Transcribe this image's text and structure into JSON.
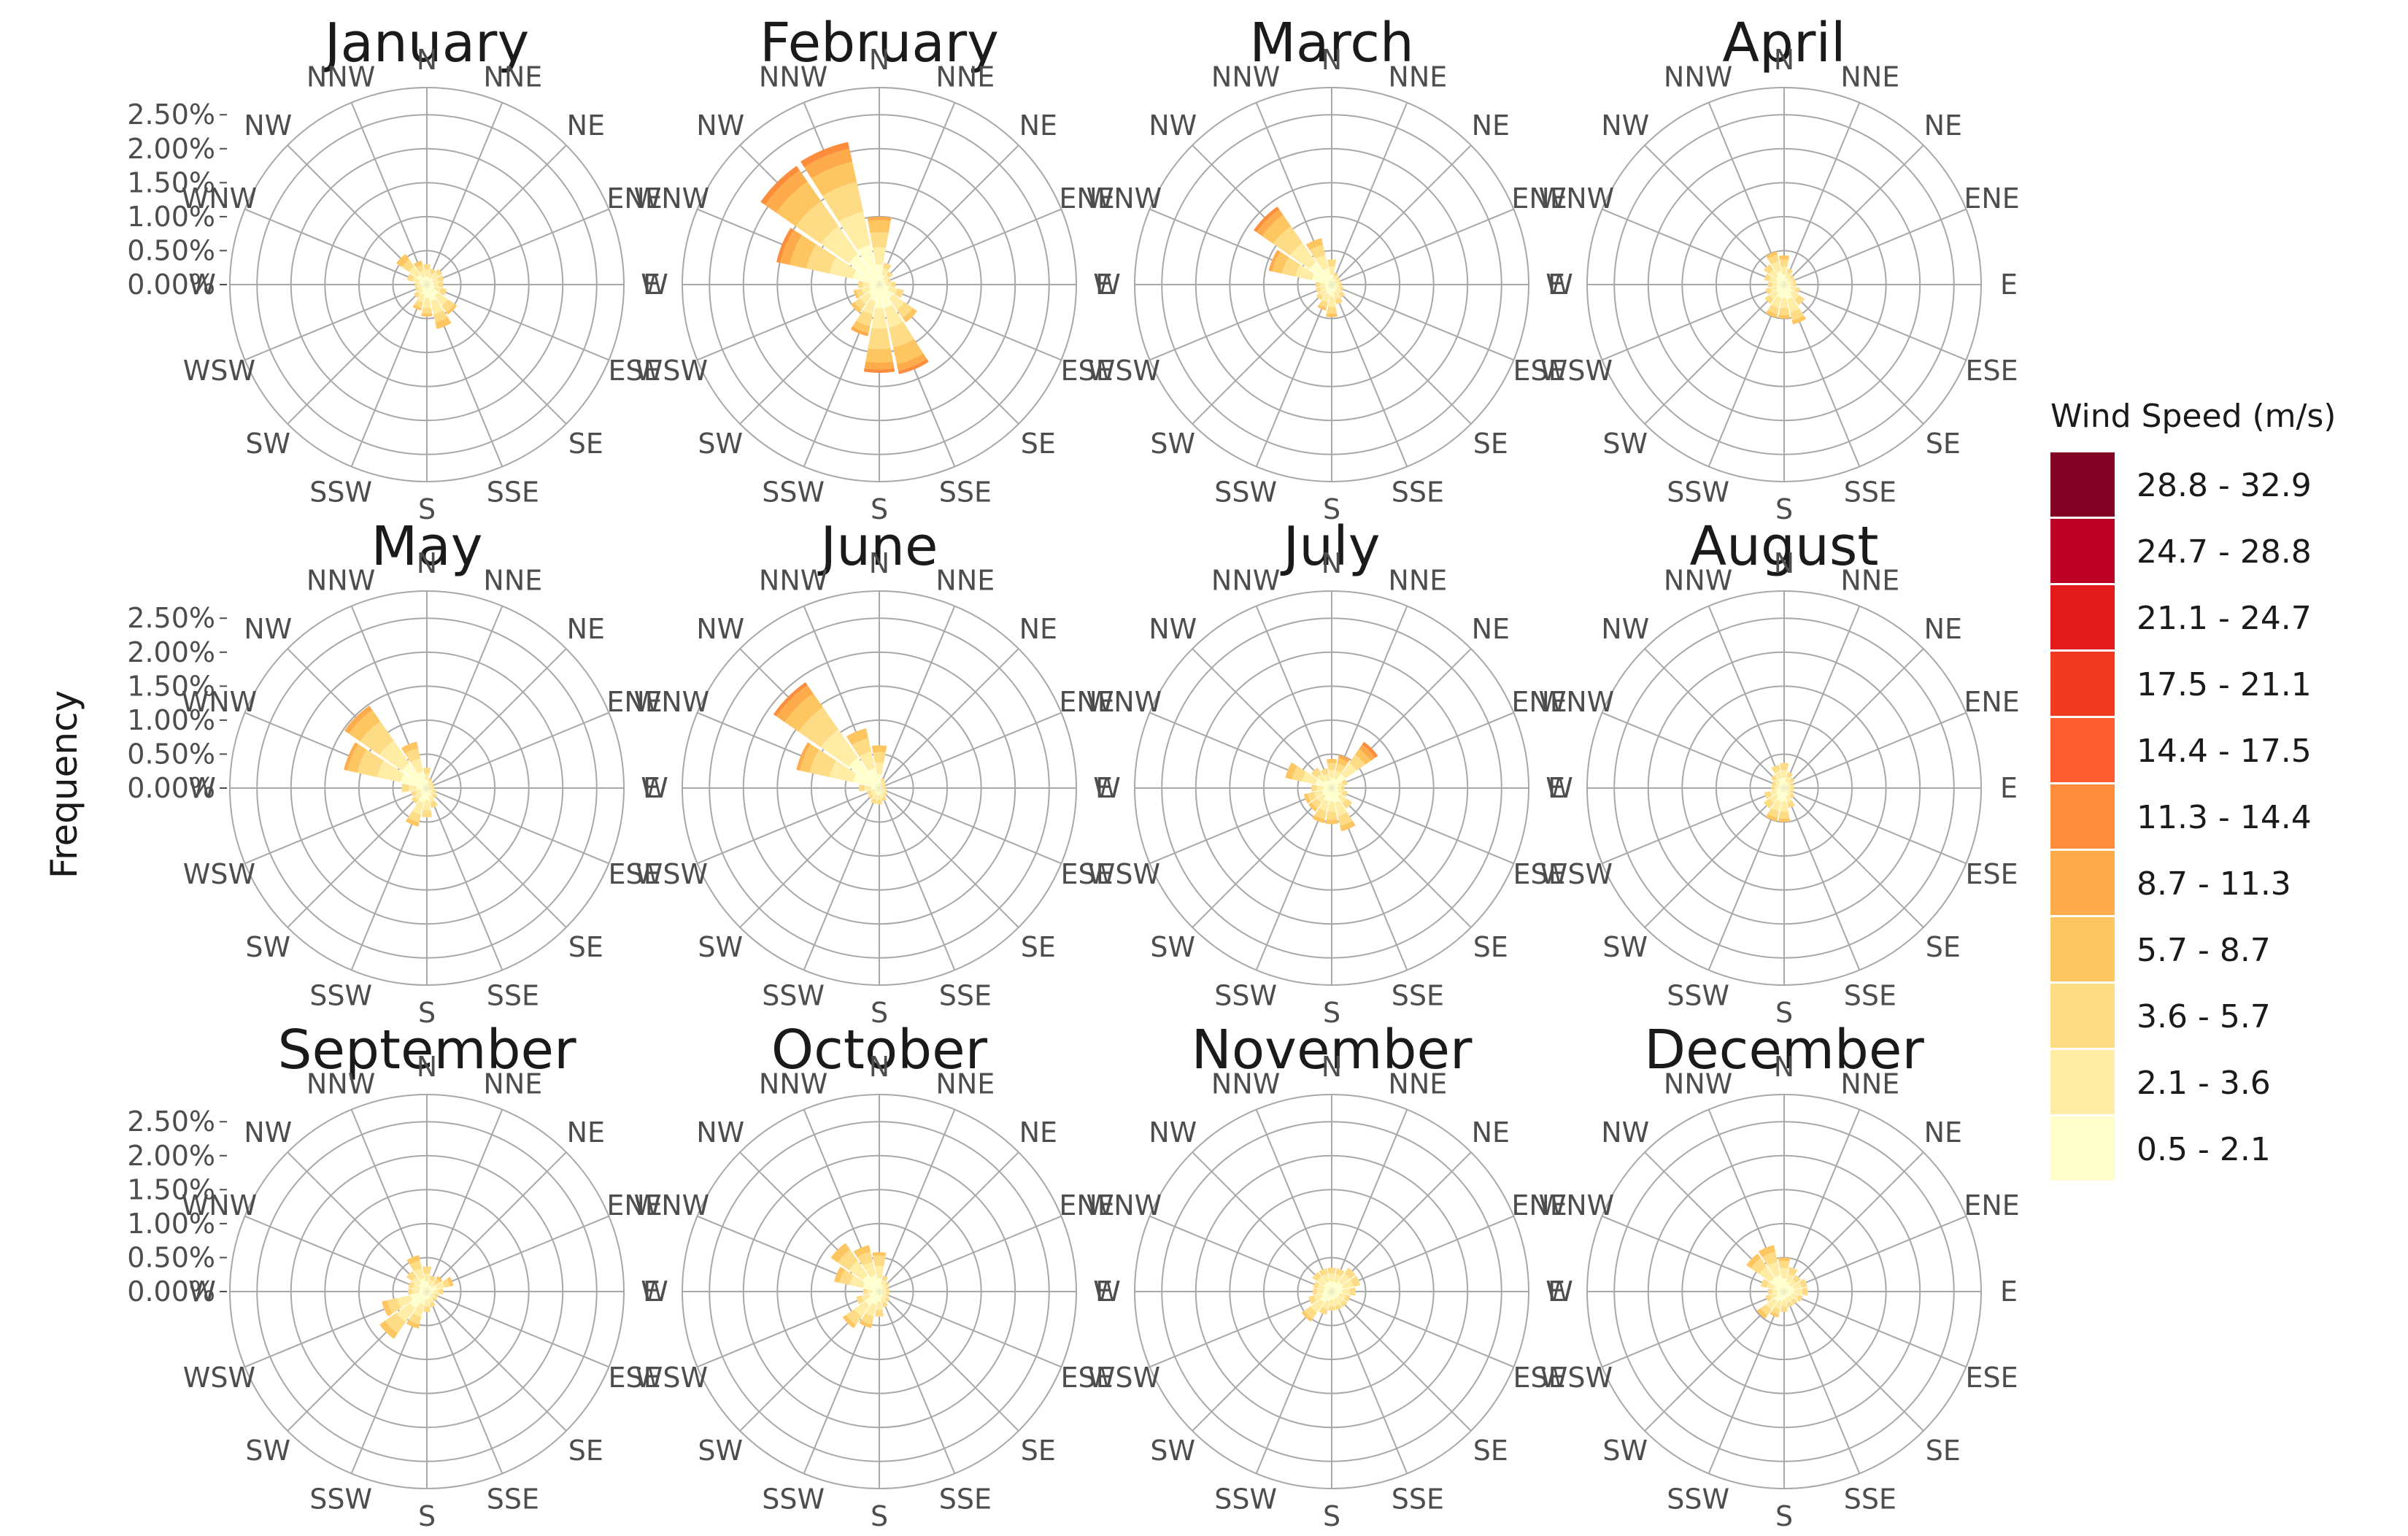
{
  "chart_data": {
    "type": "wind-rose",
    "ylabel": "Frequency",
    "y_ticks": [
      "0.00%",
      "0.50%",
      "1.00%",
      "1.50%",
      "2.00%",
      "2.50%"
    ],
    "y_max_percent": 2.9,
    "directions": [
      "N",
      "NNE",
      "NE",
      "ENE",
      "E",
      "ESE",
      "SE",
      "SSE",
      "S",
      "SSW",
      "SW",
      "WSW",
      "W",
      "WNW",
      "NW",
      "NNW"
    ],
    "legend": {
      "title": "Wind Speed (m/s)",
      "bins": [
        {
          "label": "28.8 - 32.9",
          "color": "#800026"
        },
        {
          "label": "24.7 - 28.8",
          "color": "#BD0026"
        },
        {
          "label": "21.1 - 24.7",
          "color": "#E31A1C"
        },
        {
          "label": "17.5 - 21.1",
          "color": "#F03B20"
        },
        {
          "label": "14.4 - 17.5",
          "color": "#FC5C2E"
        },
        {
          "label": "11.3 - 14.4",
          "color": "#FD8D3C"
        },
        {
          "label": "8.7 - 11.3",
          "color": "#FEAB4B"
        },
        {
          "label": "5.7 - 8.7",
          "color": "#FEC661"
        },
        {
          "label": "3.6 - 5.7",
          "color": "#FEDB85"
        },
        {
          "label": "2.1 - 3.6",
          "color": "#FFEDA5"
        },
        {
          "label": "0.5 - 2.1",
          "color": "#FFFFCC"
        }
      ]
    },
    "speed_colors_low_to_high": [
      "#FFFFCC",
      "#FFEDA5",
      "#FEDB85",
      "#FEC661",
      "#FEAB4B",
      "#FD8D3C",
      "#FC5C2E",
      "#F03B20",
      "#E31A1C",
      "#BD0026",
      "#800026"
    ],
    "note_stacks": "each direction value = stacked frequencies (%) by speed bin, low to high",
    "facets": [
      {
        "title": "January",
        "stacks": [
          [
            0.12,
            0.1,
            0.08
          ],
          [
            0.1,
            0.08,
            0.06
          ],
          [
            0.12,
            0.1,
            0.06
          ],
          [
            0.1,
            0.08,
            0.08
          ],
          [
            0.1,
            0.08,
            0.06
          ],
          [
            0.12,
            0.1,
            0.08
          ],
          [
            0.2,
            0.18,
            0.12,
            0.04
          ],
          [
            0.25,
            0.2,
            0.12,
            0.1
          ],
          [
            0.2,
            0.15,
            0.08,
            0.04
          ],
          [
            0.15,
            0.12,
            0.08,
            0.04
          ],
          [
            0.1,
            0.08,
            0.06
          ],
          [
            0.08,
            0.06,
            0.04
          ],
          [
            0.08,
            0.06,
            0.04
          ],
          [
            0.12,
            0.1,
            0.08
          ],
          [
            0.18,
            0.15,
            0.12,
            0.1
          ],
          [
            0.12,
            0.1,
            0.08,
            0.06
          ]
        ]
      },
      {
        "title": "February",
        "stacks": [
          [
            0.3,
            0.25,
            0.22,
            0.18,
            0.05
          ],
          [
            0.15,
            0.1,
            0.08
          ],
          [
            0.1,
            0.08,
            0.06
          ],
          [
            0.08,
            0.06,
            0.04
          ],
          [
            0.1,
            0.08,
            0.06
          ],
          [
            0.15,
            0.12,
            0.1
          ],
          [
            0.25,
            0.2,
            0.15,
            0.08
          ],
          [
            0.35,
            0.3,
            0.3,
            0.25,
            0.1,
            0.05
          ],
          [
            0.35,
            0.3,
            0.3,
            0.2,
            0.1,
            0.05
          ],
          [
            0.25,
            0.2,
            0.18,
            0.1,
            0.05
          ],
          [
            0.2,
            0.15,
            0.1,
            0.06
          ],
          [
            0.15,
            0.12,
            0.08,
            0.04
          ],
          [
            0.15,
            0.1,
            0.06
          ],
          [
            0.4,
            0.35,
            0.35,
            0.25,
            0.15,
            0.05
          ],
          [
            0.55,
            0.5,
            0.45,
            0.35,
            0.2,
            0.08
          ],
          [
            0.6,
            0.5,
            0.45,
            0.3,
            0.2,
            0.1
          ]
        ]
      },
      {
        "title": "March",
        "stacks": [
          [
            0.15,
            0.12,
            0.1
          ],
          [
            0.08,
            0.06,
            0.04
          ],
          [
            0.06,
            0.05,
            0.04
          ],
          [
            0.06,
            0.05,
            0.03
          ],
          [
            0.06,
            0.05,
            0.04
          ],
          [
            0.08,
            0.06,
            0.04
          ],
          [
            0.1,
            0.08,
            0.06
          ],
          [
            0.12,
            0.1,
            0.08
          ],
          [
            0.18,
            0.15,
            0.1,
            0.05
          ],
          [
            0.15,
            0.12,
            0.08,
            0.04
          ],
          [
            0.12,
            0.1,
            0.06
          ],
          [
            0.1,
            0.08,
            0.06
          ],
          [
            0.1,
            0.08,
            0.06
          ],
          [
            0.3,
            0.25,
            0.2,
            0.15,
            0.05
          ],
          [
            0.4,
            0.35,
            0.3,
            0.2,
            0.1,
            0.05
          ],
          [
            0.25,
            0.2,
            0.15,
            0.1
          ]
        ]
      },
      {
        "title": "April",
        "stacks": [
          [
            0.15,
            0.12,
            0.1,
            0.06
          ],
          [
            0.1,
            0.08,
            0.06
          ],
          [
            0.08,
            0.06,
            0.04
          ],
          [
            0.08,
            0.06,
            0.04
          ],
          [
            0.08,
            0.06,
            0.04
          ],
          [
            0.1,
            0.08,
            0.06
          ],
          [
            0.15,
            0.12,
            0.1
          ],
          [
            0.22,
            0.2,
            0.12,
            0.06
          ],
          [
            0.2,
            0.15,
            0.1,
            0.05
          ],
          [
            0.2,
            0.15,
            0.1,
            0.05
          ],
          [
            0.15,
            0.12,
            0.08
          ],
          [
            0.12,
            0.1,
            0.06
          ],
          [
            0.1,
            0.08,
            0.06
          ],
          [
            0.12,
            0.1,
            0.08
          ],
          [
            0.15,
            0.12,
            0.1
          ],
          [
            0.2,
            0.15,
            0.1,
            0.05
          ]
        ]
      },
      {
        "title": "May",
        "stacks": [
          [
            0.12,
            0.1,
            0.08
          ],
          [
            0.06,
            0.05,
            0.04
          ],
          [
            0.05,
            0.04,
            0.03
          ],
          [
            0.04,
            0.04,
            0.03
          ],
          [
            0.04,
            0.04,
            0.03
          ],
          [
            0.06,
            0.05,
            0.04
          ],
          [
            0.08,
            0.06,
            0.05
          ],
          [
            0.12,
            0.1,
            0.08
          ],
          [
            0.18,
            0.15,
            0.1
          ],
          [
            0.22,
            0.18,
            0.12,
            0.06
          ],
          [
            0.12,
            0.1,
            0.06
          ],
          [
            0.1,
            0.08,
            0.06
          ],
          [
            0.15,
            0.12,
            0.1
          ],
          [
            0.4,
            0.35,
            0.3,
            0.15,
            0.05
          ],
          [
            0.45,
            0.4,
            0.35,
            0.2,
            0.08
          ],
          [
            0.25,
            0.2,
            0.15,
            0.1
          ]
        ]
      },
      {
        "title": "June",
        "stacks": [
          [
            0.2,
            0.18,
            0.15,
            0.1
          ],
          [
            0.06,
            0.05,
            0.04
          ],
          [
            0.05,
            0.04,
            0.03
          ],
          [
            0.04,
            0.03,
            0.03
          ],
          [
            0.04,
            0.03,
            0.03
          ],
          [
            0.05,
            0.04,
            0.03
          ],
          [
            0.06,
            0.05,
            0.04
          ],
          [
            0.08,
            0.07,
            0.05
          ],
          [
            0.1,
            0.08,
            0.06
          ],
          [
            0.1,
            0.08,
            0.06
          ],
          [
            0.08,
            0.07,
            0.05
          ],
          [
            0.08,
            0.06,
            0.05
          ],
          [
            0.12,
            0.1,
            0.08
          ],
          [
            0.4,
            0.35,
            0.3,
            0.15,
            0.05
          ],
          [
            0.55,
            0.5,
            0.4,
            0.25,
            0.15,
            0.05
          ],
          [
            0.3,
            0.25,
            0.2,
            0.15
          ]
        ]
      },
      {
        "title": "July",
        "stacks": [
          [
            0.15,
            0.12,
            0.1,
            0.06
          ],
          [
            0.15,
            0.12,
            0.1,
            0.08,
            0.05
          ],
          [
            0.25,
            0.2,
            0.15,
            0.1,
            0.08,
            0.05
          ],
          [
            0.1,
            0.08,
            0.06
          ],
          [
            0.08,
            0.06,
            0.05
          ],
          [
            0.1,
            0.08,
            0.06
          ],
          [
            0.15,
            0.12,
            0.1
          ],
          [
            0.22,
            0.2,
            0.15,
            0.08
          ],
          [
            0.2,
            0.15,
            0.12,
            0.06
          ],
          [
            0.2,
            0.15,
            0.12,
            0.06
          ],
          [
            0.15,
            0.12,
            0.1,
            0.05
          ],
          [
            0.15,
            0.12,
            0.1,
            0.05
          ],
          [
            0.12,
            0.1,
            0.08
          ],
          [
            0.25,
            0.2,
            0.15,
            0.1
          ],
          [
            0.15,
            0.12,
            0.1
          ],
          [
            0.12,
            0.1,
            0.08
          ]
        ]
      },
      {
        "title": "August",
        "stacks": [
          [
            0.15,
            0.12,
            0.1
          ],
          [
            0.1,
            0.08,
            0.06
          ],
          [
            0.08,
            0.06,
            0.05
          ],
          [
            0.06,
            0.05,
            0.04
          ],
          [
            0.06,
            0.05,
            0.04
          ],
          [
            0.06,
            0.05,
            0.04
          ],
          [
            0.08,
            0.06,
            0.05
          ],
          [
            0.12,
            0.1,
            0.08
          ],
          [
            0.2,
            0.15,
            0.1,
            0.05
          ],
          [
            0.2,
            0.15,
            0.1,
            0.05
          ],
          [
            0.15,
            0.12,
            0.1
          ],
          [
            0.12,
            0.1,
            0.08
          ],
          [
            0.08,
            0.06,
            0.05
          ],
          [
            0.08,
            0.06,
            0.05
          ],
          [
            0.1,
            0.08,
            0.06
          ],
          [
            0.15,
            0.12,
            0.08
          ]
        ]
      },
      {
        "title": "September",
        "stacks": [
          [
            0.15,
            0.12,
            0.1
          ],
          [
            0.1,
            0.08,
            0.06
          ],
          [
            0.1,
            0.08,
            0.06,
            0.04
          ],
          [
            0.15,
            0.12,
            0.08,
            0.05
          ],
          [
            0.1,
            0.08,
            0.06
          ],
          [
            0.08,
            0.06,
            0.04
          ],
          [
            0.08,
            0.06,
            0.04
          ],
          [
            0.1,
            0.08,
            0.06
          ],
          [
            0.12,
            0.1,
            0.08
          ],
          [
            0.2,
            0.18,
            0.12,
            0.06
          ],
          [
            0.3,
            0.25,
            0.2,
            0.1
          ],
          [
            0.25,
            0.2,
            0.15,
            0.08
          ],
          [
            0.12,
            0.1,
            0.06
          ],
          [
            0.12,
            0.1,
            0.06
          ],
          [
            0.15,
            0.12,
            0.1
          ],
          [
            0.2,
            0.15,
            0.12,
            0.08
          ]
        ]
      },
      {
        "title": "October",
        "stacks": [
          [
            0.2,
            0.18,
            0.15,
            0.05
          ],
          [
            0.1,
            0.08,
            0.06
          ],
          [
            0.08,
            0.06,
            0.04
          ],
          [
            0.06,
            0.05,
            0.04
          ],
          [
            0.06,
            0.05,
            0.04
          ],
          [
            0.06,
            0.05,
            0.04
          ],
          [
            0.08,
            0.06,
            0.05
          ],
          [
            0.1,
            0.08,
            0.06
          ],
          [
            0.15,
            0.12,
            0.1
          ],
          [
            0.2,
            0.18,
            0.12,
            0.05
          ],
          [
            0.25,
            0.2,
            0.15,
            0.06
          ],
          [
            0.15,
            0.12,
            0.08
          ],
          [
            0.1,
            0.08,
            0.06
          ],
          [
            0.25,
            0.2,
            0.15,
            0.08
          ],
          [
            0.3,
            0.25,
            0.2,
            0.12
          ],
          [
            0.25,
            0.2,
            0.15,
            0.1
          ]
        ]
      },
      {
        "title": "November",
        "stacks": [
          [
            0.15,
            0.12,
            0.08
          ],
          [
            0.15,
            0.12,
            0.08
          ],
          [
            0.18,
            0.15,
            0.1
          ],
          [
            0.18,
            0.15,
            0.1
          ],
          [
            0.15,
            0.12,
            0.08
          ],
          [
            0.12,
            0.1,
            0.06
          ],
          [
            0.12,
            0.1,
            0.06
          ],
          [
            0.12,
            0.1,
            0.06
          ],
          [
            0.12,
            0.1,
            0.06
          ],
          [
            0.15,
            0.12,
            0.08
          ],
          [
            0.2,
            0.18,
            0.12,
            0.04
          ],
          [
            0.15,
            0.12,
            0.08
          ],
          [
            0.12,
            0.1,
            0.06
          ],
          [
            0.12,
            0.1,
            0.06
          ],
          [
            0.15,
            0.12,
            0.08
          ],
          [
            0.15,
            0.12,
            0.08
          ]
        ]
      },
      {
        "title": "December",
        "stacks": [
          [
            0.2,
            0.15,
            0.1,
            0.05
          ],
          [
            0.15,
            0.12,
            0.1
          ],
          [
            0.12,
            0.1,
            0.08
          ],
          [
            0.15,
            0.12,
            0.08
          ],
          [
            0.15,
            0.12,
            0.08
          ],
          [
            0.12,
            0.1,
            0.06
          ],
          [
            0.1,
            0.08,
            0.06
          ],
          [
            0.1,
            0.08,
            0.06
          ],
          [
            0.12,
            0.1,
            0.08
          ],
          [
            0.15,
            0.12,
            0.08,
            0.04
          ],
          [
            0.18,
            0.15,
            0.1,
            0.06
          ],
          [
            0.12,
            0.1,
            0.06
          ],
          [
            0.1,
            0.08,
            0.06
          ],
          [
            0.15,
            0.12,
            0.08
          ],
          [
            0.25,
            0.2,
            0.15,
            0.08
          ],
          [
            0.25,
            0.2,
            0.15,
            0.1
          ]
        ]
      }
    ]
  }
}
